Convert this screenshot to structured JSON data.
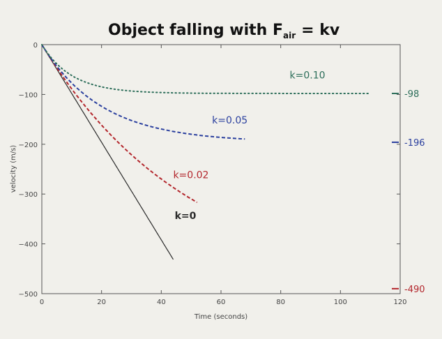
{
  "title": "Object falling with F",
  "title_sub": "air",
  "title_eq": "= kv",
  "chart_data": {
    "type": "line",
    "xlabel": "Time (seconds)",
    "ylabel": "velocity (m/s)",
    "xlim": [
      0,
      120
    ],
    "ylim": [
      -500,
      0
    ],
    "xticks": [
      0,
      20,
      40,
      60,
      80,
      100,
      120
    ],
    "yticks": [
      0,
      -100,
      -200,
      -300,
      -400,
      -500
    ],
    "xtick_labels": [
      "0",
      "20",
      "40",
      "60",
      "80",
      "100",
      "120"
    ],
    "ytick_labels": [
      "0",
      "−100",
      "−200",
      "−300",
      "−400",
      "−500"
    ],
    "grid": false,
    "series": [
      {
        "name": "k=0",
        "k": 0,
        "t_max": 44,
        "color": "#2a2a2a",
        "style": "solid"
      },
      {
        "name": "k=0.02",
        "k": 0.02,
        "t_max": 52,
        "color": "#b3262c",
        "style": "dashed"
      },
      {
        "name": "k=0.05",
        "k": 0.05,
        "t_max": 68,
        "color": "#2a3f9e",
        "style": "dashed"
      },
      {
        "name": "k=0.10",
        "k": 0.1,
        "t_max": 110,
        "color": "#2d6e5a",
        "style": "dotted"
      }
    ],
    "terminal_marks": [
      {
        "label": "-98",
        "value": -98,
        "color": "#2d6e5a"
      },
      {
        "label": "-196",
        "value": -196,
        "color": "#2a3f9e"
      },
      {
        "label": "-490",
        "value": -490,
        "color": "#b3262c"
      }
    ]
  }
}
